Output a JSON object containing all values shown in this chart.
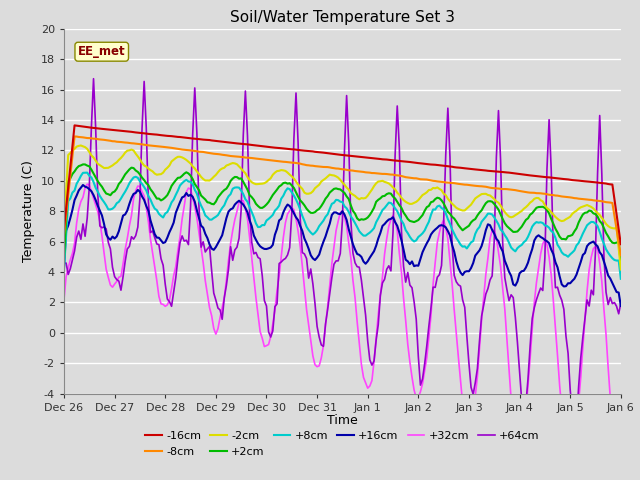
{
  "title": "Soil/Water Temperature Set 3",
  "xlabel": "Time",
  "ylabel": "Temperature (C)",
  "ylim": [
    -4,
    20
  ],
  "xlim": [
    0,
    264
  ],
  "xtick_labels": [
    "Dec 26",
    "Dec 27",
    "Dec 28",
    "Dec 29",
    "Dec 30",
    "Dec 31",
    "Jan 1",
    "Jan 2",
    "Jan 3",
    "Jan 4",
    "Jan 5",
    "Jan 6"
  ],
  "xtick_positions": [
    0,
    24,
    48,
    72,
    96,
    120,
    144,
    168,
    192,
    216,
    240,
    264
  ],
  "ytick_labels": [
    "-4",
    "-2",
    "0",
    "2",
    "4",
    "6",
    "8",
    "10",
    "12",
    "14",
    "16",
    "18",
    "20"
  ],
  "ytick_values": [
    -4,
    -2,
    0,
    2,
    4,
    6,
    8,
    10,
    12,
    14,
    16,
    18,
    20
  ],
  "background_color": "#dcdcdc",
  "plot_bg_color": "#dcdcdc",
  "grid_color": "#ffffff",
  "series": [
    {
      "label": "-16cm",
      "color": "#cc0000",
      "linewidth": 1.5
    },
    {
      "label": "-8cm",
      "color": "#ff8800",
      "linewidth": 1.5
    },
    {
      "label": "-2cm",
      "color": "#dddd00",
      "linewidth": 1.5
    },
    {
      "label": "+2cm",
      "color": "#00bb00",
      "linewidth": 1.5
    },
    {
      "label": "+8cm",
      "color": "#00cccc",
      "linewidth": 1.5
    },
    {
      "label": "+16cm",
      "color": "#0000aa",
      "linewidth": 1.5
    },
    {
      "label": "+32cm",
      "color": "#ff44ff",
      "linewidth": 1.2
    },
    {
      "label": "+64cm",
      "color": "#9900cc",
      "linewidth": 1.2
    }
  ],
  "watermark_text": "EE_met",
  "watermark_bg": "#ffffcc",
  "watermark_border": "#888800"
}
